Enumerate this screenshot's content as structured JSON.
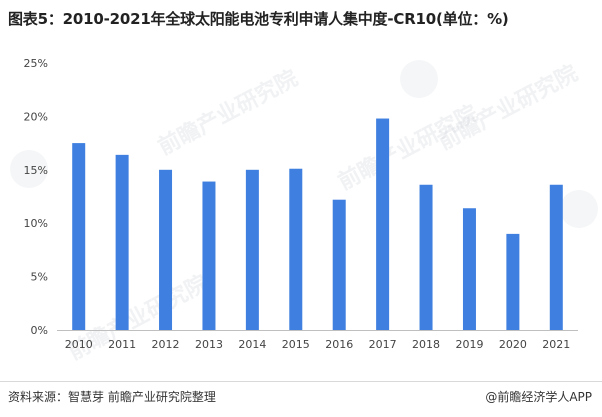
{
  "title": "图表5：2010-2021年全球太阳能电池专利申请人集中度-CR10(单位：%)",
  "source": "资料来源：智慧芽 前瞻产业研究院整理",
  "credit": "@前瞻经济学人APP",
  "watermark": "前瞻产业研究院",
  "colors": {
    "bar": "#3e7fdf",
    "axis": "#bfbfbf",
    "text": "#444444"
  },
  "chart_data": {
    "type": "bar",
    "categories": [
      "2010",
      "2011",
      "2012",
      "2013",
      "2014",
      "2015",
      "2016",
      "2017",
      "2018",
      "2019",
      "2020",
      "2021"
    ],
    "values": [
      17.5,
      16.4,
      15.0,
      13.9,
      15.0,
      15.1,
      12.2,
      19.8,
      13.6,
      11.4,
      9.0,
      13.6
    ],
    "yticks": [
      "0%",
      "5%",
      "10%",
      "15%",
      "20%",
      "25%"
    ],
    "ylim": [
      0,
      25
    ],
    "grid": false
  }
}
